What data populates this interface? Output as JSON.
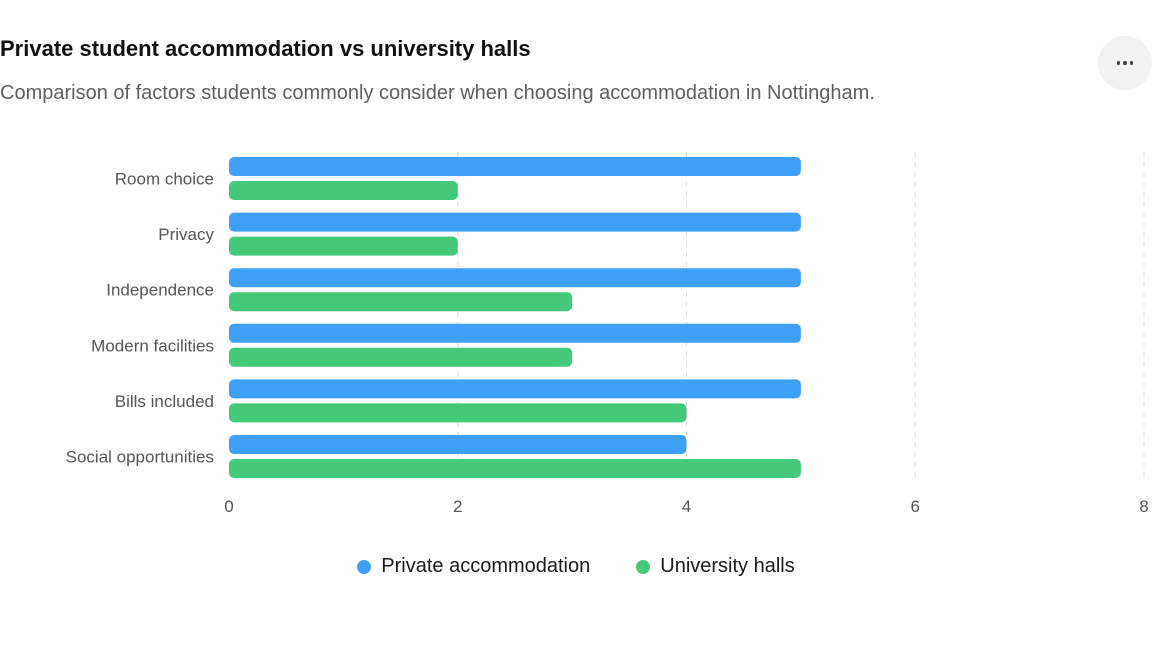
{
  "header": {
    "title": "Private student accommodation vs university halls",
    "subtitle": "Comparison of factors students commonly consider when choosing accommodation in Nottingham.",
    "more_icon": "more-horizontal-icon"
  },
  "chart_data": {
    "type": "bar",
    "orientation": "horizontal",
    "categories": [
      "Room choice",
      "Privacy",
      "Independence",
      "Modern facilities",
      "Bills included",
      "Social opportunities"
    ],
    "series": [
      {
        "name": "Private accommodation",
        "color": "#3ea0f7",
        "values": [
          5,
          5,
          5,
          5,
          5,
          4
        ]
      },
      {
        "name": "University halls",
        "color": "#44c87a",
        "values": [
          2,
          2,
          3,
          3,
          4,
          5
        ]
      }
    ],
    "xlim": [
      0,
      8
    ],
    "xticks": [
      0,
      2,
      4,
      6,
      8
    ],
    "grid": true,
    "legend_position": "bottom-center"
  }
}
